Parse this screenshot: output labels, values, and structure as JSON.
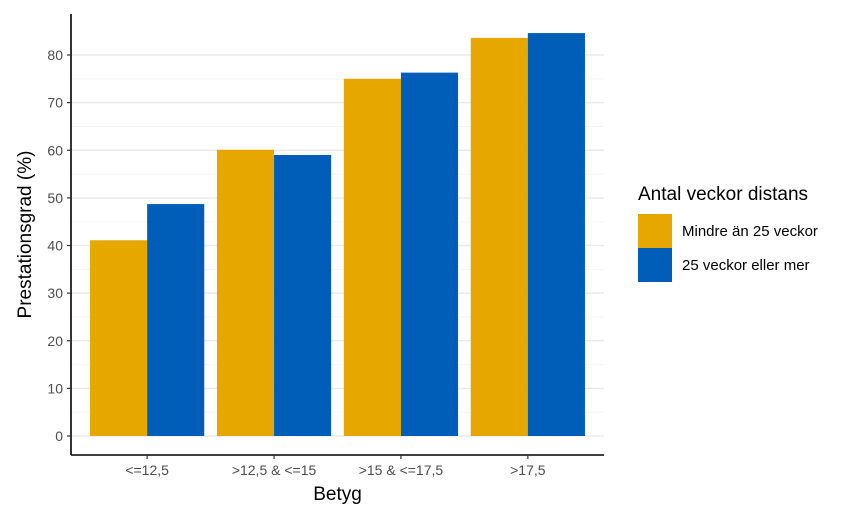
{
  "chart_data": {
    "type": "bar",
    "title": "",
    "xlabel": "Betyg",
    "ylabel": "Prestationsgrad (%)",
    "categories": [
      "<=12,5",
      ">12,5 & <=15",
      ">15 & <=17,5",
      ">17,5"
    ],
    "series": [
      {
        "name": "Mindre än 25 veckor",
        "color": "#E6A800",
        "values": [
          41.1,
          60.1,
          75.0,
          83.6
        ]
      },
      {
        "name": "25 veckor eller mer",
        "color": "#005EB8",
        "values": [
          48.7,
          59.0,
          76.3,
          84.6
        ]
      }
    ],
    "ylim": [
      0,
      87
    ],
    "yticks": [
      0,
      10,
      20,
      30,
      40,
      50,
      60,
      70,
      80
    ],
    "grid": true,
    "legend": {
      "title": "Antal veckor distans",
      "position": "right"
    }
  }
}
